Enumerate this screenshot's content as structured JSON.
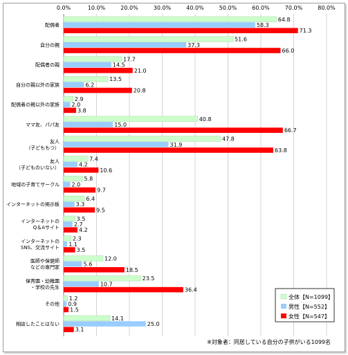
{
  "chart_data": {
    "type": "bar",
    "orientation": "horizontal",
    "title": "",
    "xlabel": "",
    "ylabel": "",
    "xlim": [
      0,
      80
    ],
    "ticks": [
      "0.0%",
      "10.0%",
      "20.0%",
      "30.0%",
      "40.0%",
      "50.0%",
      "60.0%",
      "70.0%",
      "80.0%"
    ],
    "grid": true,
    "legend_position": "bottom-right",
    "categories": [
      [
        "配偶者"
      ],
      [
        "自分の親"
      ],
      [
        "配偶者の親"
      ],
      [
        "自分の親以外の家族"
      ],
      [
        "配偶者の親以外の家族"
      ],
      [
        "ママ友、パパ友"
      ],
      [
        "友人",
        "（子どももつ）"
      ],
      [
        "友人",
        "（子どものいない）"
      ],
      [
        "地域の子育てサークル"
      ],
      [
        "インターネットの掲示板"
      ],
      [
        "インターネットの",
        "Q＆Aサイト"
      ],
      [
        "インターネットの",
        "SNS、交流サイト"
      ],
      [
        "医師や保健師",
        "などの専門家"
      ],
      [
        "保育園・幼稚園",
        "・学校の先生"
      ],
      [
        "その他"
      ],
      [
        "相談したことはない"
      ]
    ],
    "series": [
      {
        "name": "全体【N=1099】",
        "color": "#ccffcc",
        "values": [
          64.8,
          51.6,
          17.7,
          13.5,
          2.9,
          40.8,
          47.8,
          7.4,
          5.8,
          6.4,
          3.5,
          2.3,
          12.0,
          23.5,
          1.2,
          14.1
        ],
        "labels": [
          "64.8",
          "51.6",
          "17.7",
          "13.5",
          "2.9",
          "40.8",
          "47.8",
          "7.4",
          "5.8",
          "6.4",
          "3.5",
          "2.3",
          "12.0",
          "23.5",
          "1.2",
          "14.1"
        ]
      },
      {
        "name": "男性【N=552】",
        "color": "#99ccff",
        "values": [
          58.3,
          37.3,
          14.5,
          6.2,
          2.0,
          15.0,
          31.9,
          4.2,
          2.0,
          3.3,
          2.7,
          1.1,
          5.6,
          10.7,
          0.9,
          25.0
        ],
        "labels": [
          "58.3",
          "37.3",
          "14.5",
          "6.2",
          "2.0",
          "15.0",
          "31.9",
          "4.2",
          "2.0",
          "3.3",
          "2.7",
          "1.1",
          "5.6",
          "10.7",
          "0.9",
          "25.0"
        ]
      },
      {
        "name": "女性【N=547】",
        "color": "#ff0000",
        "values": [
          71.3,
          66.0,
          21.0,
          20.8,
          3.8,
          66.7,
          63.8,
          10.6,
          9.7,
          9.5,
          4.2,
          3.5,
          18.5,
          36.4,
          1.5,
          3.1
        ],
        "labels": [
          "71.3",
          "66.0",
          "21.0",
          "20.8",
          "3.8",
          "66.7",
          "63.8",
          "10.6",
          "9.7",
          "9.5",
          "4.2",
          "3.5",
          "18.5",
          "36.4",
          "1.5",
          "3.1"
        ]
      }
    ],
    "footnote": "※対象者：同居している自分の子供がいる1099名"
  }
}
